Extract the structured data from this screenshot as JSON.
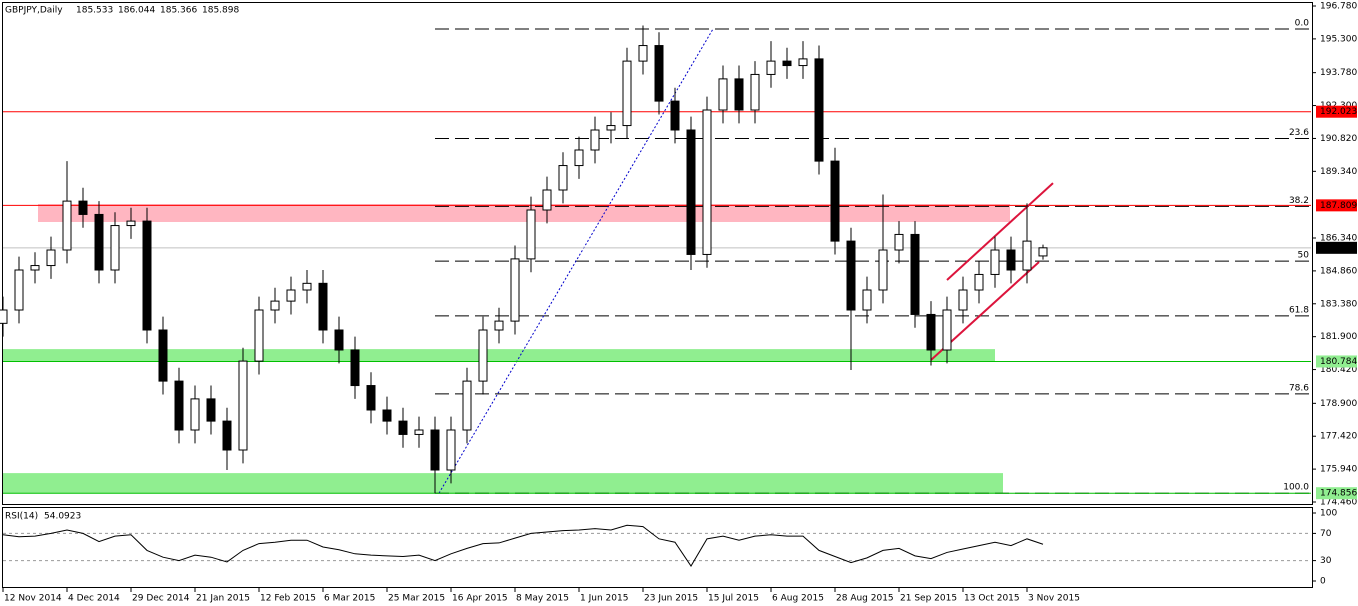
{
  "chart_data": {
    "type": "candlestick",
    "title": "GBPJPY,Daily",
    "x": [
      0,
      4,
      8,
      12,
      16,
      20,
      24,
      28,
      32,
      36,
      40,
      44,
      48,
      52,
      56,
      60,
      64,
      68,
      72,
      76,
      80,
      84,
      88,
      92,
      96,
      100,
      104,
      108,
      112,
      116,
      120,
      124,
      128,
      132,
      136,
      140,
      144,
      148,
      152,
      156,
      160,
      164,
      168,
      172,
      176,
      180,
      184,
      188,
      192,
      196,
      200,
      204,
      208,
      212,
      216,
      220,
      224,
      228,
      232,
      236,
      240,
      244,
      248,
      252,
      256,
      260
    ],
    "open": [
      182.5,
      183.1,
      184.9,
      185.1,
      185.8,
      188.0,
      187.4,
      184.9,
      186.9,
      187.1,
      182.2,
      179.9,
      177.7,
      179.1,
      178.1,
      176.8,
      180.8,
      183.1,
      183.5,
      184.0,
      184.3,
      182.2,
      181.3,
      179.7,
      178.6,
      178.1,
      177.5,
      177.7,
      175.9,
      177.7,
      179.9,
      182.2,
      182.6,
      185.4,
      187.6,
      188.5,
      189.6,
      190.3,
      191.2,
      191.4,
      194.3,
      195.0,
      192.5,
      191.2,
      185.6,
      192.1,
      193.5,
      192.1,
      193.7,
      194.3,
      194.1,
      194.4,
      189.8,
      186.2,
      183.1,
      184.0,
      185.8,
      186.5,
      182.9,
      181.3,
      183.1,
      184.0,
      184.7,
      185.8,
      184.9,
      185.533
    ],
    "high": [
      183.7,
      185.5,
      185.7,
      186.4,
      189.8,
      188.6,
      188.0,
      187.5,
      187.7,
      187.7,
      182.8,
      180.5,
      179.7,
      179.7,
      178.7,
      181.4,
      183.7,
      184.1,
      184.6,
      184.9,
      184.9,
      182.8,
      181.9,
      180.3,
      179.2,
      178.7,
      178.3,
      178.3,
      178.3,
      180.5,
      182.8,
      183.2,
      186.0,
      188.2,
      189.1,
      190.2,
      190.9,
      191.8,
      192.0,
      194.9,
      195.9,
      195.6,
      193.1,
      191.8,
      192.7,
      194.1,
      194.1,
      194.3,
      195.2,
      194.9,
      195.2,
      195.0,
      190.4,
      186.8,
      184.6,
      188.3,
      187.1,
      187.1,
      183.5,
      183.7,
      184.6,
      185.3,
      186.4,
      186.4,
      187.9,
      186.044
    ],
    "low": [
      181.9,
      182.5,
      184.3,
      184.5,
      185.2,
      186.8,
      184.3,
      184.3,
      186.3,
      181.6,
      179.3,
      177.1,
      177.1,
      177.5,
      175.9,
      176.2,
      180.2,
      182.5,
      182.9,
      183.4,
      181.6,
      180.7,
      179.1,
      178.0,
      177.5,
      176.9,
      176.9,
      174.856,
      175.3,
      177.1,
      179.3,
      181.6,
      182.0,
      184.8,
      187.0,
      187.9,
      189.0,
      189.7,
      190.6,
      190.8,
      193.7,
      191.9,
      190.6,
      184.9,
      185.0,
      191.5,
      191.5,
      191.5,
      193.1,
      193.5,
      193.5,
      189.2,
      185.6,
      180.4,
      182.5,
      183.4,
      185.2,
      182.3,
      180.6,
      180.7,
      182.5,
      183.4,
      184.1,
      184.3,
      184.3,
      185.366
    ],
    "close": [
      183.1,
      184.9,
      185.1,
      185.8,
      188.0,
      187.4,
      184.9,
      186.9,
      187.1,
      182.2,
      179.9,
      177.7,
      179.1,
      178.1,
      176.8,
      180.8,
      183.1,
      183.5,
      184.0,
      184.3,
      182.2,
      181.3,
      179.7,
      178.6,
      178.1,
      177.5,
      177.7,
      175.9,
      177.7,
      179.9,
      182.2,
      182.6,
      185.4,
      187.6,
      188.5,
      189.6,
      190.3,
      191.2,
      191.4,
      194.3,
      195.0,
      192.5,
      191.2,
      185.6,
      192.1,
      193.5,
      192.1,
      193.7,
      194.3,
      194.1,
      194.4,
      189.8,
      186.2,
      183.1,
      184.0,
      185.8,
      186.5,
      182.9,
      181.3,
      183.1,
      184.0,
      184.7,
      185.8,
      184.9,
      186.2,
      185.898
    ],
    "color": "#000000",
    "xlim": [
      0,
      327
    ],
    "xticks": [
      {
        "value": 0,
        "label": "12 Nov 2014"
      },
      {
        "value": 16,
        "label": "4 Dec 2014"
      },
      {
        "value": 32,
        "label": "29 Dec 2014"
      },
      {
        "value": 48,
        "label": "21 Jan 2015"
      },
      {
        "value": 64,
        "label": "12 Feb 2015"
      },
      {
        "value": 80,
        "label": "6 Mar 2015"
      },
      {
        "value": 96,
        "label": "25 Mar 2015"
      },
      {
        "value": 112,
        "label": "16 Apr 2015"
      },
      {
        "value": 128,
        "label": "8 May 2015"
      },
      {
        "value": 144,
        "label": "1 Jun 2015"
      },
      {
        "value": 160,
        "label": "23 Jun 2015"
      },
      {
        "value": 176,
        "label": "15 Jul 2015"
      },
      {
        "value": 192,
        "label": "6 Aug 2015"
      },
      {
        "value": 208,
        "label": "28 Aug 2015"
      },
      {
        "value": 224,
        "label": "21 Sep 2015"
      },
      {
        "value": 240,
        "label": "13 Oct 2015"
      },
      {
        "value": 256,
        "label": "3 Nov 2015"
      }
    ],
    "ylim": [
      174.46,
      196.78
    ],
    "yticks": [
      {
        "value": 196.78,
        "label": "196.780"
      },
      {
        "value": 195.3,
        "label": "195.300"
      },
      {
        "value": 193.78,
        "label": "193.780"
      },
      {
        "value": 192.3,
        "label": "192.300"
      },
      {
        "value": 190.82,
        "label": "190.820"
      },
      {
        "value": 189.34,
        "label": "189.340"
      },
      {
        "value": 186.34,
        "label": "186.340"
      },
      {
        "value": 184.86,
        "label": "184.860"
      },
      {
        "value": 183.38,
        "label": "183.380"
      },
      {
        "value": 181.9,
        "label": "181.900"
      },
      {
        "value": 180.42,
        "label": "180.420"
      },
      {
        "value": 178.9,
        "label": "178.900"
      },
      {
        "value": 177.42,
        "label": "177.420"
      },
      {
        "value": 175.94,
        "label": "175.940"
      },
      {
        "value": 174.46,
        "label": "174.460"
      }
    ],
    "zones": [
      {
        "from": 187.06,
        "to": 187.87,
        "x_from": 8.75,
        "x_to": 251.75,
        "color": "#ffb6c1"
      },
      {
        "from": 180.76,
        "to": 181.34,
        "x_from": 0,
        "x_to": 248,
        "color": "#90ee90"
      },
      {
        "from": 174.86,
        "to": 175.76,
        "x_from": 0,
        "x_to": 250,
        "color": "#90ee90"
      }
    ],
    "levels": [
      {
        "value": 192.023,
        "color": "#ff0000",
        "text_color": "#ffffff"
      },
      {
        "value": 187.809,
        "color": "#ff0000",
        "text_color": "#ffffff"
      },
      {
        "value": 185.898,
        "color": "#c0c0c0",
        "label_color": "#000000",
        "text_color": "#ffffff"
      },
      {
        "value": 180.784,
        "color": "#00c000",
        "label_color": "#90ee90",
        "text_color": "#000000"
      },
      {
        "value": 174.856,
        "color": "#00c000",
        "label_color": "#90ee90",
        "text_color": "#000000"
      }
    ],
    "fibonacci": {
      "high": 195.745,
      "low": 174.856,
      "x_from": 108,
      "x_anchor_low": 109,
      "x_anchor_high": 177.5,
      "color": "#000000",
      "trend_color": "#0000cc",
      "levels": [
        {
          "value": 0,
          "label": "0.0"
        },
        23.6,
        38.2,
        50.0,
        61.8,
        78.6,
        {
          "value": 100,
          "label": "100.0"
        }
      ]
    },
    "channel": {
      "color": "#dc143c",
      "lines": [
        {
          "start": [
            236,
            184.45
          ],
          "end": [
            262.5,
            188.81
          ]
        },
        {
          "start": [
            232,
            180.85
          ],
          "end": [
            259,
            185.26
          ]
        }
      ]
    },
    "rsi": {
      "name": "RSI(14)",
      "current": 54.0923,
      "color": "#000000",
      "values": [
        68,
        65,
        66,
        70,
        75,
        70,
        58,
        66,
        68,
        45,
        35,
        30,
        38,
        35,
        28,
        45,
        55,
        57,
        60,
        60,
        50,
        46,
        40,
        38,
        37,
        36,
        38,
        30,
        40,
        48,
        55,
        56,
        63,
        70,
        72,
        74,
        75,
        77,
        75,
        82,
        80,
        62,
        57,
        22,
        62,
        66,
        60,
        66,
        68,
        66,
        66,
        45,
        36,
        27,
        34,
        45,
        48,
        37,
        33,
        42,
        47,
        52,
        57,
        52,
        62,
        54.0923
      ],
      "ylim": [
        0,
        100
      ],
      "yticks": [
        100,
        70,
        30,
        0
      ],
      "levels": [
        70,
        30
      ]
    }
  }
}
